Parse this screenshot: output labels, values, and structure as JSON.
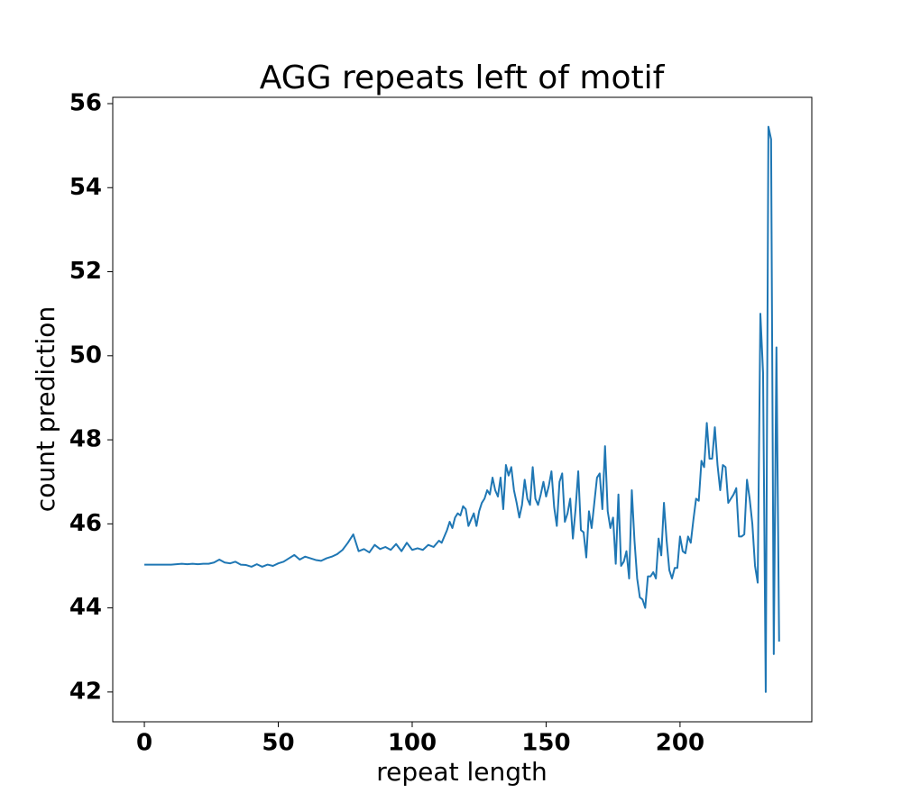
{
  "chart_data": {
    "type": "line",
    "title": "AGG repeats left of motif",
    "xlabel": "repeat length",
    "ylabel": "count prediction",
    "x": [
      0,
      2,
      4,
      6,
      8,
      10,
      12,
      14,
      16,
      18,
      20,
      22,
      24,
      26,
      28,
      30,
      32,
      34,
      36,
      38,
      40,
      42,
      44,
      46,
      48,
      50,
      52,
      54,
      56,
      58,
      60,
      62,
      64,
      66,
      68,
      70,
      72,
      74,
      76,
      78,
      80,
      82,
      84,
      86,
      88,
      90,
      92,
      94,
      96,
      98,
      100,
      102,
      104,
      106,
      108,
      110,
      111,
      112,
      113,
      114,
      115,
      116,
      117,
      118,
      119,
      120,
      121,
      122,
      123,
      124,
      125,
      126,
      127,
      128,
      129,
      130,
      131,
      132,
      133,
      134,
      135,
      136,
      137,
      138,
      139,
      140,
      141,
      142,
      143,
      144,
      145,
      146,
      147,
      148,
      149,
      150,
      151,
      152,
      153,
      154,
      155,
      156,
      157,
      158,
      159,
      160,
      161,
      162,
      163,
      164,
      165,
      166,
      167,
      168,
      169,
      170,
      171,
      172,
      173,
      174,
      175,
      176,
      177,
      178,
      179,
      180,
      181,
      182,
      183,
      184,
      185,
      186,
      187,
      188,
      189,
      190,
      191,
      192,
      193,
      194,
      195,
      196,
      197,
      198,
      199,
      200,
      201,
      202,
      203,
      204,
      205,
      206,
      207,
      208,
      209,
      210,
      211,
      212,
      213,
      214,
      215,
      216,
      217,
      218,
      219,
      220,
      221,
      222,
      223,
      224,
      225,
      226,
      227,
      228,
      229,
      230,
      231,
      232,
      233,
      234,
      235,
      236,
      237
    ],
    "series": [
      {
        "name": "count prediction",
        "color": "#1f77b4",
        "values": [
          45.03,
          45.03,
          45.03,
          45.03,
          45.03,
          45.03,
          45.04,
          45.05,
          45.04,
          45.05,
          45.04,
          45.05,
          45.05,
          45.08,
          45.15,
          45.08,
          45.06,
          45.1,
          45.03,
          45.02,
          44.98,
          45.04,
          44.98,
          45.03,
          45.0,
          45.06,
          45.1,
          45.18,
          45.26,
          45.15,
          45.22,
          45.18,
          45.14,
          45.12,
          45.18,
          45.22,
          45.28,
          45.38,
          45.55,
          45.75,
          45.35,
          45.4,
          45.32,
          45.5,
          45.4,
          45.45,
          45.38,
          45.52,
          45.35,
          45.55,
          45.38,
          45.42,
          45.38,
          45.5,
          45.45,
          45.6,
          45.55,
          45.7,
          45.85,
          46.05,
          45.9,
          46.15,
          46.25,
          46.2,
          46.42,
          46.35,
          45.95,
          46.1,
          46.25,
          45.95,
          46.3,
          46.5,
          46.6,
          46.8,
          46.7,
          47.1,
          46.8,
          46.65,
          47.1,
          46.35,
          47.4,
          47.15,
          47.35,
          46.8,
          46.5,
          46.15,
          46.45,
          47.05,
          46.6,
          46.45,
          47.35,
          46.6,
          46.45,
          46.7,
          47.0,
          46.65,
          46.9,
          47.25,
          46.4,
          45.95,
          47.0,
          47.2,
          46.05,
          46.25,
          46.6,
          45.65,
          46.35,
          47.25,
          45.85,
          45.8,
          45.2,
          46.3,
          45.9,
          46.5,
          47.1,
          47.2,
          46.35,
          47.85,
          46.3,
          45.9,
          46.15,
          45.05,
          46.7,
          45.0,
          45.1,
          45.35,
          44.7,
          46.8,
          45.6,
          44.7,
          44.25,
          44.2,
          44.0,
          44.75,
          44.75,
          44.85,
          44.7,
          45.65,
          45.25,
          46.5,
          45.6,
          44.9,
          44.7,
          44.95,
          44.95,
          45.7,
          45.35,
          45.3,
          45.7,
          45.55,
          46.1,
          46.6,
          46.55,
          47.5,
          47.35,
          48.4,
          47.55,
          47.55,
          48.3,
          47.4,
          46.8,
          47.4,
          47.35,
          46.5,
          46.6,
          46.7,
          46.85,
          45.7,
          45.7,
          45.75,
          47.05,
          46.6,
          46.0,
          45.0,
          44.6,
          51.0,
          49.6,
          42.0,
          55.45,
          55.15,
          42.9,
          50.2,
          43.2
        ]
      }
    ],
    "xlim": [
      -11.8,
      249.2
    ],
    "ylim": [
      41.29,
      56.15
    ],
    "xticks": [
      0,
      50,
      100,
      150,
      200
    ],
    "yticks": [
      42,
      44,
      46,
      48,
      50,
      52,
      54,
      56
    ],
    "grid": false
  }
}
